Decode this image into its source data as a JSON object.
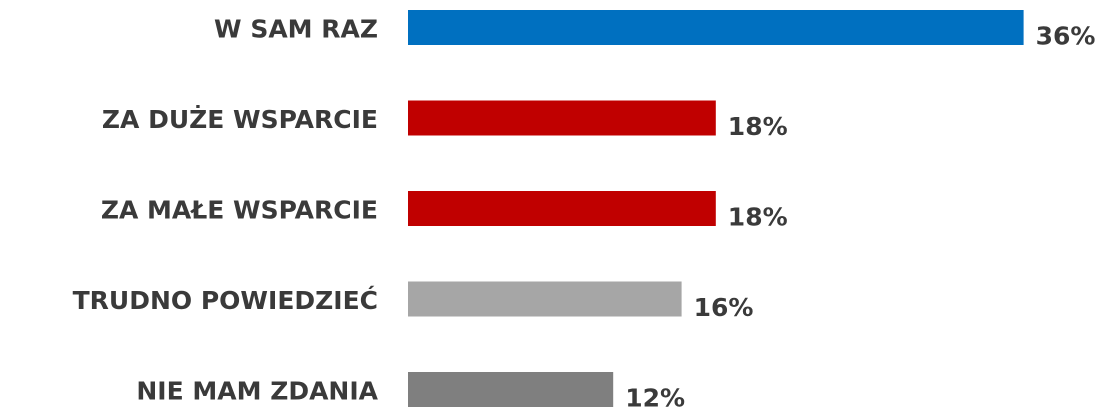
{
  "chart_data": {
    "type": "bar",
    "orientation": "horizontal",
    "categories": [
      "W SAM RAZ",
      "ZA DUŻE WSPARCIE",
      "ZA MAŁE WSPARCIE",
      "TRUDNO POWIEDZIEĆ",
      "NIE MAM ZDANIA"
    ],
    "values": [
      36,
      18,
      18,
      16,
      12
    ],
    "value_labels": [
      "36%",
      "18%",
      "18%",
      "16%",
      "12%"
    ],
    "colors": [
      "#0070c0",
      "#c00000",
      "#c00000",
      "#a6a6a6",
      "#7f7f7f"
    ]
  }
}
